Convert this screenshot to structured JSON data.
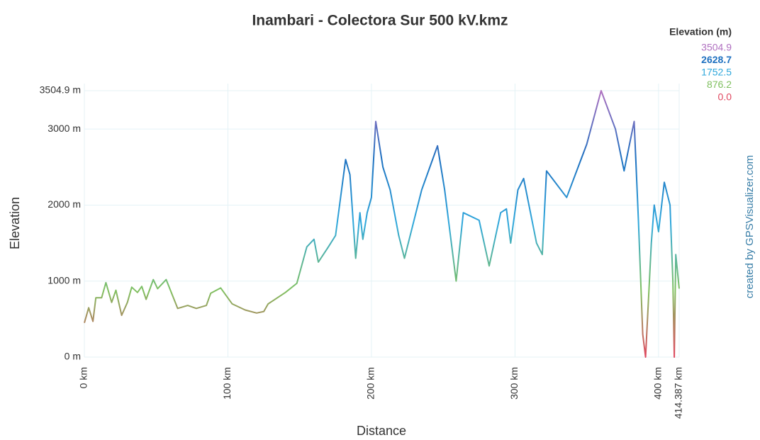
{
  "chart_data": {
    "type": "line",
    "title": "Inambari - Colectora Sur 500 kV.kmz",
    "x_label": "Distance",
    "y_label": "Elevation",
    "credit": "created by GPSVisualizer.com",
    "legend_title": "Elevation (m)",
    "color_scale": [
      {
        "value": 3504.9,
        "label": "3504.9",
        "color": "#b070c0"
      },
      {
        "value": 2628.7,
        "label": "2628.7",
        "color": "#1e70c0"
      },
      {
        "value": 1752.5,
        "label": "1752.5",
        "color": "#30a8dc"
      },
      {
        "value": 876.2,
        "label": "876.2",
        "color": "#80c060"
      },
      {
        "value": 0,
        "label": "0.0",
        "color": "#e04860"
      }
    ],
    "grid": true,
    "xlim": [
      0,
      414.387
    ],
    "ylim": [
      0,
      3504.9
    ],
    "xticks": [
      {
        "value": 0,
        "label": "0 km"
      },
      {
        "value": 100,
        "label": "100 km"
      },
      {
        "value": 200,
        "label": "200 km"
      },
      {
        "value": 300,
        "label": "300 km"
      },
      {
        "value": 400,
        "label": "400 km"
      },
      {
        "value": 414.387,
        "label": "414.387 km"
      }
    ],
    "yticks": [
      {
        "value": 0,
        "label": "0 m"
      },
      {
        "value": 1000,
        "label": "1000 m"
      },
      {
        "value": 2000,
        "label": "2000 m"
      },
      {
        "value": 3000,
        "label": "3000 m"
      },
      {
        "value": 3504.9,
        "label": "3504.9 m"
      }
    ],
    "x": [
      0,
      3,
      6,
      8,
      12,
      15,
      19,
      22,
      26,
      30,
      33,
      37,
      40,
      43,
      48,
      51,
      57,
      65,
      72,
      78,
      85,
      88,
      95,
      103,
      112,
      120,
      125,
      128,
      140,
      148,
      155,
      160,
      163,
      170,
      175,
      182,
      185,
      189,
      192,
      194,
      197,
      200,
      203,
      208,
      213,
      219,
      223,
      235,
      246,
      251,
      259,
      264,
      275,
      282,
      290,
      294,
      297,
      302,
      306,
      315,
      319,
      322,
      336,
      350,
      360,
      370,
      376,
      383,
      386,
      389,
      391,
      395,
      397,
      400,
      404,
      408,
      410,
      411,
      412,
      414.387
    ],
    "values": [
      450,
      650,
      470,
      780,
      780,
      980,
      720,
      880,
      550,
      720,
      920,
      850,
      930,
      760,
      1020,
      900,
      1020,
      640,
      680,
      640,
      680,
      840,
      910,
      700,
      620,
      580,
      600,
      700,
      850,
      970,
      1450,
      1550,
      1250,
      1450,
      1600,
      2600,
      2400,
      1300,
      1900,
      1550,
      1900,
      2100,
      3100,
      2500,
      2200,
      1600,
      1300,
      2200,
      2780,
      2200,
      1000,
      1900,
      1800,
      1200,
      1900,
      1950,
      1500,
      2200,
      2350,
      1500,
      1350,
      2450,
      2100,
      2800,
      3504.9,
      3000,
      2450,
      3100,
      1800,
      300,
      0,
      1500,
      2000,
      1650,
      2300,
      2000,
      1000,
      0,
      1350,
      900
    ]
  }
}
